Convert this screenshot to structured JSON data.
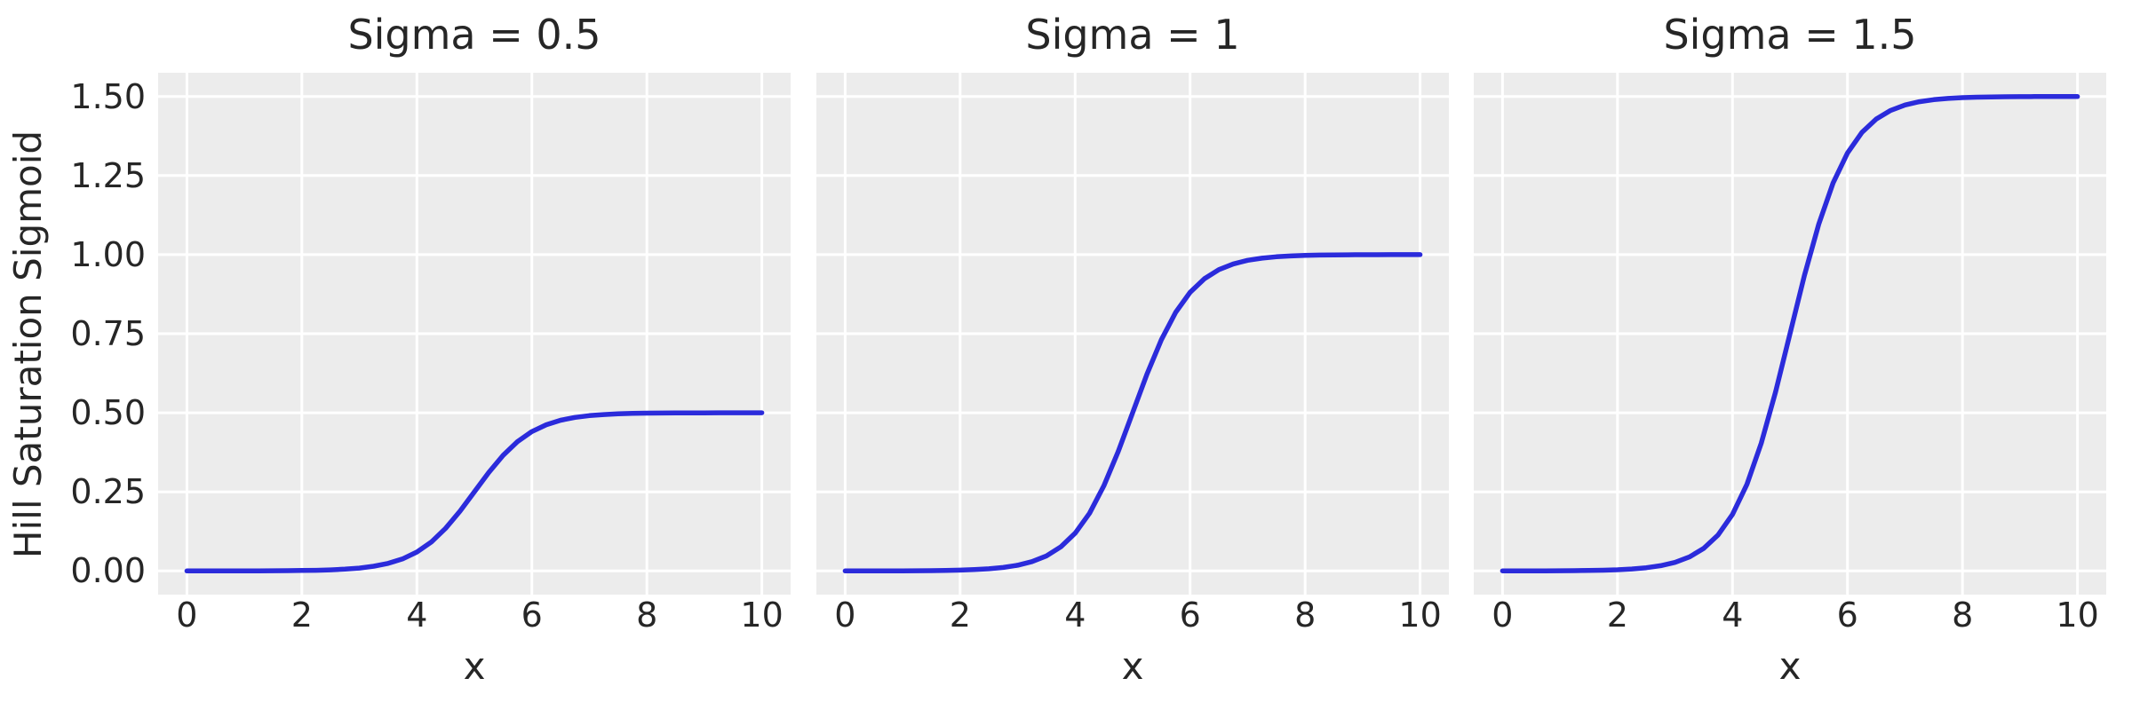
{
  "figure": {
    "ylabel": "Hill Saturation Sigmoid",
    "background": "#ffffff",
    "axes_background": "#ececec",
    "grid_color": "#ffffff",
    "line_color": "#2b2bdb",
    "text_color": "#262626"
  },
  "chart_data": [
    {
      "type": "line",
      "title": "Sigma = 0.5",
      "sigma": 0.5,
      "xlabel": "x",
      "ylabel": "Hill Saturation Sigmoid",
      "grid": true,
      "legend": "none",
      "xlim": [
        -0.5,
        10.5
      ],
      "ylim": [
        -0.075,
        1.575
      ],
      "xticks": [
        0,
        2,
        4,
        6,
        8,
        10
      ],
      "yticks": [
        0,
        0.25,
        0.5,
        0.75,
        1.0,
        1.25,
        1.5
      ],
      "ytick_labels": [
        "0.00",
        "0.25",
        "0.50",
        "0.75",
        "1.00",
        "1.25",
        "1.50"
      ],
      "show_ytick_labels": true,
      "series": [
        {
          "name": "hill-sigmoid-sigma-0.5",
          "x": [
            0,
            0.25,
            0.5,
            0.75,
            1,
            1.25,
            1.5,
            1.75,
            2,
            2.25,
            2.5,
            2.75,
            3,
            3.25,
            3.5,
            3.75,
            4,
            4.25,
            4.5,
            4.75,
            5,
            5.25,
            5.5,
            5.75,
            6,
            6.25,
            6.5,
            6.75,
            7,
            7.25,
            7.5,
            7.75,
            8,
            8.25,
            8.5,
            8.75,
            9,
            9.25,
            9.5,
            9.75,
            10
          ],
          "y": [
            0,
            0,
            0.0001,
            0.0001,
            0.0002,
            0.0003,
            0.0005,
            0.0008,
            0.0012,
            0.002,
            0.0033,
            0.0055,
            0.009,
            0.0147,
            0.0237,
            0.0379,
            0.0596,
            0.0912,
            0.1345,
            0.1888,
            0.25,
            0.3112,
            0.3655,
            0.4088,
            0.4404,
            0.4621,
            0.4763,
            0.4853,
            0.491,
            0.4945,
            0.4967,
            0.498,
            0.4988,
            0.4992,
            0.4995,
            0.4997,
            0.4998,
            0.4999,
            0.4999,
            0.5,
            0.5
          ]
        }
      ]
    },
    {
      "type": "line",
      "title": "Sigma = 1",
      "sigma": 1,
      "xlabel": "x",
      "ylabel": "",
      "grid": true,
      "legend": "none",
      "xlim": [
        -0.5,
        10.5
      ],
      "ylim": [
        -0.075,
        1.575
      ],
      "xticks": [
        0,
        2,
        4,
        6,
        8,
        10
      ],
      "yticks": [
        0,
        0.25,
        0.5,
        0.75,
        1.0,
        1.25,
        1.5
      ],
      "ytick_labels": [],
      "show_ytick_labels": false,
      "series": [
        {
          "name": "hill-sigmoid-sigma-1",
          "x": [
            0,
            0.25,
            0.5,
            0.75,
            1,
            1.25,
            1.5,
            1.75,
            2,
            2.25,
            2.5,
            2.75,
            3,
            3.25,
            3.5,
            3.75,
            4,
            4.25,
            4.5,
            4.75,
            5,
            5.25,
            5.5,
            5.75,
            6,
            6.25,
            6.5,
            6.75,
            7,
            7.25,
            7.5,
            7.75,
            8,
            8.25,
            8.5,
            8.75,
            9,
            9.25,
            9.5,
            9.75,
            10
          ],
          "y": [
            0,
            0.0001,
            0.0001,
            0.0002,
            0.0003,
            0.0006,
            0.0009,
            0.0015,
            0.0025,
            0.0041,
            0.0067,
            0.011,
            0.018,
            0.0293,
            0.0474,
            0.0759,
            0.1192,
            0.1824,
            0.2689,
            0.3775,
            0.5,
            0.6225,
            0.7311,
            0.8176,
            0.8808,
            0.9241,
            0.9526,
            0.9707,
            0.982,
            0.9889,
            0.9933,
            0.9959,
            0.9975,
            0.9985,
            0.9991,
            0.9994,
            0.9997,
            0.9998,
            0.9999,
            0.9999,
            1
          ]
        }
      ]
    },
    {
      "type": "line",
      "title": "Sigma = 1.5",
      "sigma": 1.5,
      "xlabel": "x",
      "ylabel": "",
      "grid": true,
      "legend": "none",
      "xlim": [
        -0.5,
        10.5
      ],
      "ylim": [
        -0.075,
        1.575
      ],
      "xticks": [
        0,
        2,
        4,
        6,
        8,
        10
      ],
      "yticks": [
        0,
        0.25,
        0.5,
        0.75,
        1.0,
        1.25,
        1.5
      ],
      "ytick_labels": [],
      "show_ytick_labels": false,
      "series": [
        {
          "name": "hill-sigmoid-sigma-1.5",
          "x": [
            0,
            0.25,
            0.5,
            0.75,
            1,
            1.25,
            1.5,
            1.75,
            2,
            2.25,
            2.5,
            2.75,
            3,
            3.25,
            3.5,
            3.75,
            4,
            4.25,
            4.5,
            4.75,
            5,
            5.25,
            5.5,
            5.75,
            6,
            6.25,
            6.5,
            6.75,
            7,
            7.25,
            7.5,
            7.75,
            8,
            8.25,
            8.5,
            8.75,
            9,
            9.25,
            9.5,
            9.75,
            10
          ],
          "y": [
            0.0001,
            0.0001,
            0.0002,
            0.0003,
            0.0005,
            0.0008,
            0.0014,
            0.0023,
            0.0037,
            0.0061,
            0.01,
            0.0165,
            0.027,
            0.044,
            0.0711,
            0.1138,
            0.1788,
            0.2736,
            0.4034,
            0.5663,
            0.75,
            0.9337,
            1.0966,
            1.2264,
            1.3212,
            1.3862,
            1.4289,
            1.456,
            1.473,
            1.4834,
            1.49,
            1.4939,
            1.4963,
            1.4977,
            1.4986,
            1.4992,
            1.4995,
            1.4997,
            1.4998,
            1.4999,
            1.4999
          ]
        }
      ]
    }
  ]
}
